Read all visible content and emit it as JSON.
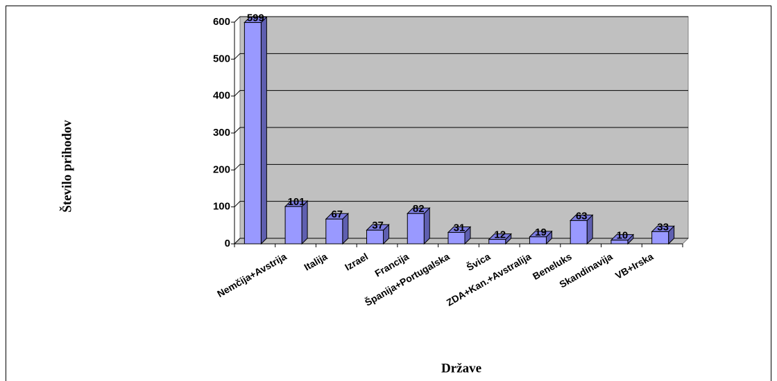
{
  "chart_data": {
    "type": "bar",
    "xlabel": "Države",
    "ylabel": "Število prihodov",
    "categories": [
      "Nemčija+Avstrija",
      "Italija",
      "Izrael",
      "Francija",
      "Španija+Portugalska",
      "Švica",
      "ZDA+Kan.+Avstralija",
      "Beneluks",
      "Skandinavija",
      "VB+Irska",
      null
    ],
    "values": [
      599,
      101,
      67,
      37,
      82,
      31,
      12,
      19,
      63,
      10,
      33
    ],
    "color": "#9999ff",
    "ylim": [
      0,
      600
    ],
    "yticks": [
      0,
      100,
      200,
      300,
      400,
      500,
      600
    ],
    "grid": true
  }
}
